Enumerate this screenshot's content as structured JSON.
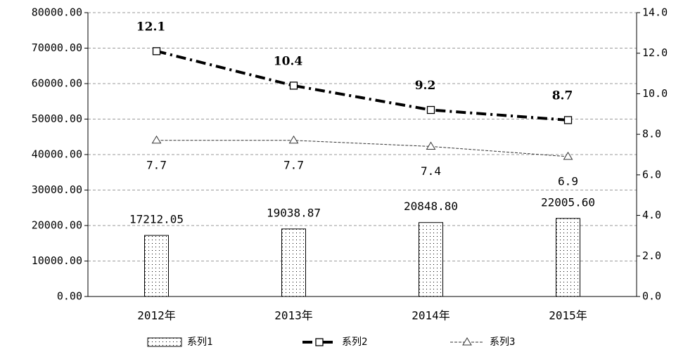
{
  "chart_data": {
    "type": "bar-line",
    "categories": [
      "2012年",
      "2013年",
      "2014年",
      "2015年"
    ],
    "series": [
      {
        "name": "系列1",
        "type": "bar",
        "color": "#000000",
        "values": [
          17212.05,
          19038.87,
          20848.8,
          22005.6
        ],
        "value_labels": [
          "17212.05",
          "19038.87",
          "20848.80",
          "22005.60"
        ]
      },
      {
        "name": "系列2",
        "type": "line",
        "axis": "y2",
        "color": "#000000",
        "values": [
          12.1,
          10.4,
          9.2,
          8.7
        ]
      },
      {
        "name": "系列3",
        "type": "line",
        "axis": "y2",
        "color": "#333333",
        "values": [
          7.7,
          7.7,
          7.4,
          6.9
        ]
      }
    ],
    "ylim": [
      0,
      80000
    ],
    "yticks": [
      {
        "value": 0,
        "label": "0.00"
      },
      {
        "value": 10000,
        "label": "10000.00"
      },
      {
        "value": 20000,
        "label": "20000.00"
      },
      {
        "value": 30000,
        "label": "30000.00"
      },
      {
        "value": 40000,
        "label": "40000.00"
      },
      {
        "value": 50000,
        "label": "50000.00"
      },
      {
        "value": 60000,
        "label": "60000.00"
      },
      {
        "value": 70000,
        "label": "70000.00"
      },
      {
        "value": 80000,
        "label": "80000.00"
      }
    ],
    "y2lim": [
      0,
      14
    ],
    "y2ticks": [
      {
        "value": 0,
        "label": "0.0"
      },
      {
        "value": 2,
        "label": "2.0"
      },
      {
        "value": 4,
        "label": "4.0"
      },
      {
        "value": 6,
        "label": "6.0"
      },
      {
        "value": 8,
        "label": "8.0"
      },
      {
        "value": 10,
        "label": "10.0"
      },
      {
        "value": 12,
        "label": "12.0"
      },
      {
        "value": 14,
        "label": "14.0"
      }
    ],
    "grid": true
  }
}
